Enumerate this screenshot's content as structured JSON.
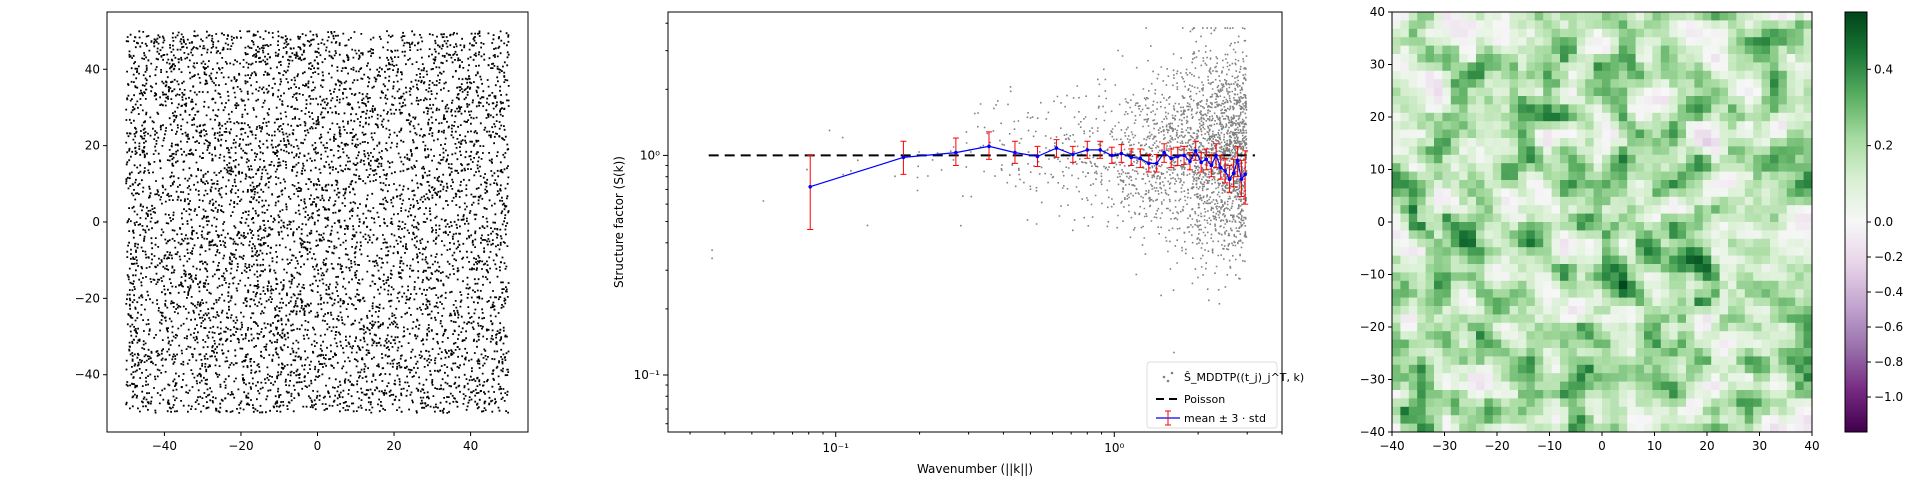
{
  "chart_data": [
    {
      "type": "scatter",
      "panel": "point-pattern",
      "xlim": [
        -55,
        55
      ],
      "ylim": [
        -55,
        55
      ],
      "xticks": [
        -40,
        -20,
        0,
        20,
        40
      ],
      "yticks": [
        -40,
        -20,
        0,
        20,
        40
      ],
      "xtick_labels": [
        "−40",
        "−20",
        "0",
        "20",
        "40"
      ],
      "ytick_labels": [
        "−40",
        "−20",
        "0",
        "20",
        "40"
      ],
      "window": {
        "x": [
          -50,
          50
        ],
        "y": [
          -50,
          50
        ]
      },
      "marker_color": "#000000",
      "grid": false
    },
    {
      "type": "scatter",
      "panel": "structure-factor",
      "xlabel": "Wavenumber (||k||)",
      "ylabel": "Structure factor (S(k))",
      "x_scale": "log",
      "y_scale": "log",
      "xlim": [
        0.025,
        4.0
      ],
      "ylim": [
        0.055,
        4.5
      ],
      "xticks": [
        0.1,
        1.0
      ],
      "xtick_labels": [
        "10⁻¹",
        "10⁰"
      ],
      "yticks": [
        0.1,
        1.0
      ],
      "ytick_labels": [
        "10⁻¹",
        "10⁰"
      ],
      "legend_position": "lower-right",
      "legend": [
        {
          "label": "Ŝ_MDDTP((t_j)_j^T, k)",
          "color": "#808080",
          "style": "dot"
        },
        {
          "label": "Poisson",
          "color": "#000000",
          "style": "dashed"
        },
        {
          "label": "mean ± 3 · std",
          "color": "#0000ff",
          "style": "errorbar"
        }
      ],
      "poisson_level": 1.0,
      "scatter_color": "#808080",
      "series": [
        {
          "name": "mean ± 3 · std",
          "color": "#0000ff",
          "errorbar_color": "#ff0000",
          "x": [
            0.081,
            0.175,
            0.27,
            0.355,
            0.44,
            0.53,
            0.62,
            0.71,
            0.8,
            0.89,
            0.98,
            1.06,
            1.15,
            1.24,
            1.33,
            1.42,
            1.51,
            1.6,
            1.69,
            1.78,
            1.87,
            1.96,
            2.05,
            2.14,
            2.23,
            2.32,
            2.41,
            2.5,
            2.59,
            2.68,
            2.77,
            2.86,
            2.95
          ],
          "y": [
            0.72,
            0.98,
            1.03,
            1.1,
            1.03,
            0.99,
            1.08,
            1.01,
            1.06,
            1.06,
            1.0,
            1.02,
            0.98,
            0.97,
            0.92,
            0.92,
            1.03,
            0.97,
            0.99,
            1.0,
            0.94,
            1.05,
            0.93,
            0.96,
            0.9,
            1.0,
            0.88,
            0.85,
            0.78,
            0.83,
            0.95,
            0.78,
            0.82
          ],
          "yerr_low": [
            0.46,
            0.82,
            0.9,
            0.96,
            0.92,
            0.89,
            0.98,
            0.93,
            0.97,
            0.97,
            0.92,
            0.93,
            0.9,
            0.88,
            0.84,
            0.84,
            0.93,
            0.88,
            0.9,
            0.91,
            0.86,
            0.95,
            0.84,
            0.86,
            0.8,
            0.88,
            0.78,
            0.75,
            0.68,
            0.72,
            0.8,
            0.65,
            0.6
          ],
          "yerr_high": [
            1.0,
            1.16,
            1.2,
            1.28,
            1.16,
            1.1,
            1.18,
            1.1,
            1.16,
            1.16,
            1.09,
            1.12,
            1.07,
            1.07,
            1.01,
            1.01,
            1.13,
            1.07,
            1.09,
            1.1,
            1.03,
            1.16,
            1.03,
            1.07,
            1.01,
            1.13,
            1.0,
            0.97,
            0.9,
            0.96,
            1.1,
            0.95,
            1.05
          ]
        }
      ]
    },
    {
      "type": "heatmap",
      "panel": "field",
      "xlim": [
        -40,
        40
      ],
      "ylim": [
        -40,
        40
      ],
      "xticks": [
        -40,
        -30,
        -20,
        -10,
        0,
        10,
        20,
        30,
        40
      ],
      "yticks": [
        -40,
        -30,
        -20,
        -10,
        0,
        10,
        20,
        30,
        40
      ],
      "xtick_labels": [
        "−40",
        "−30",
        "−20",
        "−10",
        "0",
        "10",
        "20",
        "30",
        "40"
      ],
      "ytick_labels": [
        "−40",
        "−30",
        "−20",
        "−10",
        "0",
        "10",
        "20",
        "30",
        "40"
      ],
      "grid_size": 50,
      "colormap": "PRGn",
      "value_range": [
        -1.2,
        0.55
      ],
      "colorbar_ticks": [
        0.4,
        0.2,
        0.0,
        -0.2,
        -0.4,
        -0.6,
        -0.8,
        -1.0
      ],
      "colorbar_tick_labels": [
        "0.4",
        "0.2",
        "0.0",
        "−0.2",
        "−0.4",
        "−0.6",
        "−0.8",
        "−1.0"
      ],
      "colormap_stops": [
        "#40004b",
        "#762a83",
        "#9970ab",
        "#c2a5cf",
        "#e7d4e8",
        "#f7f7f7",
        "#d9f0d3",
        "#a6dba0",
        "#5aae61",
        "#1b7837",
        "#00441b"
      ]
    }
  ]
}
